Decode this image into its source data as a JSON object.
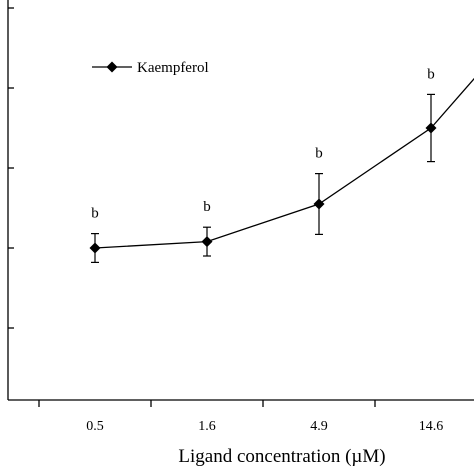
{
  "chart_data": {
    "type": "line",
    "title": "",
    "xlabel": "Ligand concentration (µM)",
    "ylabel": "",
    "categories": [
      "0.5",
      "1.6",
      "4.9",
      "14.6",
      ""
    ],
    "series": [
      {
        "name": "Kaempferol",
        "values": [
          1.0,
          1.08,
          1.55,
          2.5,
          4.1
        ],
        "errors": [
          0.18,
          0.18,
          0.38,
          0.42,
          null
        ],
        "labels": [
          "b",
          "b",
          "b",
          "b",
          ""
        ]
      }
    ],
    "ylim": [
      -0.9,
      4.6
    ],
    "y_tick_values": [
      0,
      1,
      2,
      3,
      4
    ],
    "legend": {
      "position": "top-left",
      "marker": "diamond"
    },
    "grid": false
  }
}
